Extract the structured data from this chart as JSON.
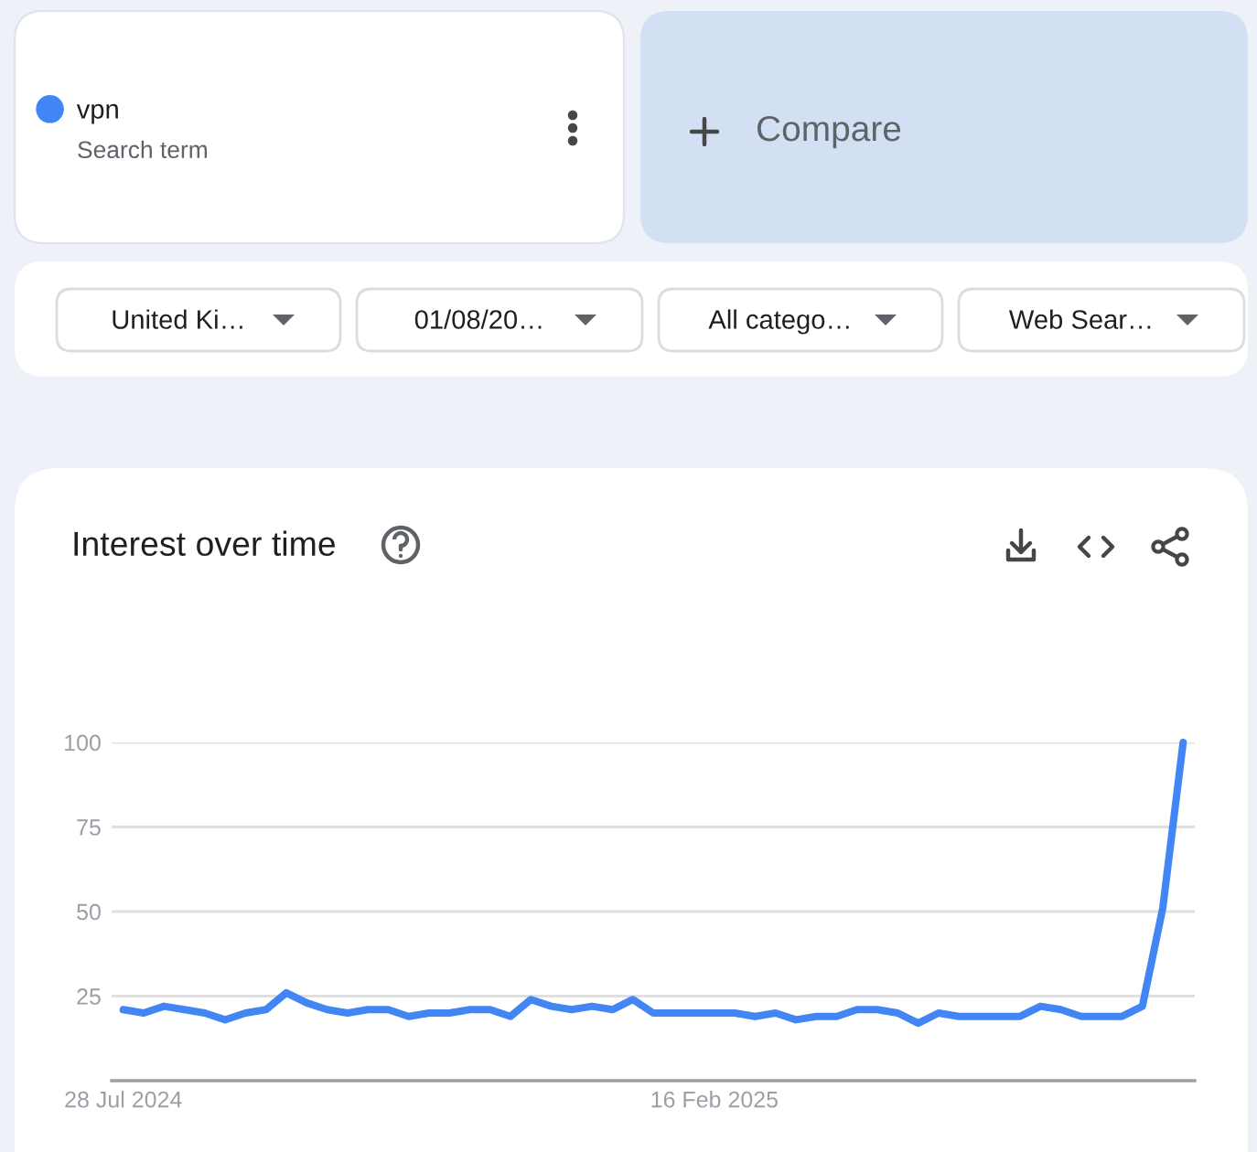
{
  "chart_data": {
    "type": "line",
    "title": "Interest over time",
    "annotations": [
      "Search term",
      "Compare",
      "United Ki…",
      "01/08/20…",
      "All catego…",
      "Web Sear…"
    ],
    "x": [
      "2024-07-28",
      "2024-08-04",
      "2024-08-11",
      "2024-08-18",
      "2024-08-25",
      "2024-09-01",
      "2024-09-08",
      "2024-09-15",
      "2024-09-22",
      "2024-09-29",
      "2024-10-06",
      "2024-10-13",
      "2024-10-20",
      "2024-10-27",
      "2024-11-03",
      "2024-11-10",
      "2024-11-17",
      "2024-11-24",
      "2024-12-01",
      "2024-12-08",
      "2024-12-15",
      "2024-12-22",
      "2024-12-29",
      "2025-01-05",
      "2025-01-12",
      "2025-01-19",
      "2025-01-26",
      "2025-02-02",
      "2025-02-09",
      "2025-02-16",
      "2025-02-23",
      "2025-03-02",
      "2025-03-09",
      "2025-03-16",
      "2025-03-23",
      "2025-03-30",
      "2025-04-06",
      "2025-04-13",
      "2025-04-20",
      "2025-04-27",
      "2025-05-04",
      "2025-05-11",
      "2025-05-18",
      "2025-05-25",
      "2025-06-01",
      "2025-06-08",
      "2025-06-15",
      "2025-06-22",
      "2025-06-29",
      "2025-07-06",
      "2025-07-13",
      "2025-07-20",
      "2025-07-27"
    ],
    "series": [
      {
        "name": "vpn",
        "color": "#4285f4",
        "values": [
          21,
          20,
          22,
          21,
          20,
          18,
          20,
          21,
          26,
          23,
          21,
          20,
          21,
          21,
          19,
          20,
          20,
          21,
          21,
          19,
          24,
          22,
          21,
          22,
          21,
          24,
          20,
          20,
          20,
          20,
          20,
          19,
          20,
          18,
          19,
          19,
          21,
          21,
          20,
          17,
          20,
          19,
          19,
          19,
          19,
          22,
          21,
          19,
          19,
          19,
          22,
          51,
          100
        ]
      }
    ],
    "xlim": [
      "2024-07-24",
      "2025-07-31"
    ],
    "xticks": [
      {
        "value": "2024-07-28",
        "label": "28 Jul 2024"
      },
      {
        "value": "2025-02-16",
        "label": "16 Feb 2025"
      }
    ],
    "ylim": [
      0,
      100
    ],
    "yticks": [
      25,
      50,
      75,
      100
    ],
    "grid": "y",
    "legend": "top left"
  }
}
